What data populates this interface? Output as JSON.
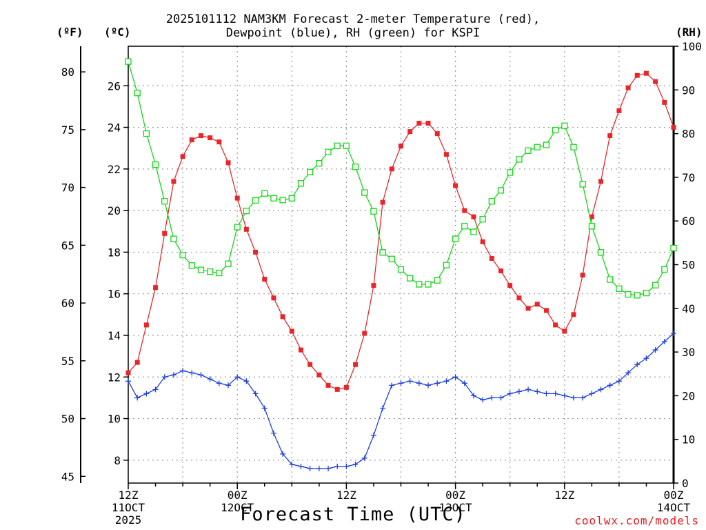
{
  "chart_data": {
    "type": "line",
    "title_line1": "2025101112 NAM3KM Forecast 2-meter Temperature (red),",
    "title_line2": "Dewpoint (blue), RH (green) for KSPI",
    "xlabel": "Forecast Time (UTC)",
    "unit_f": "(ºF)",
    "unit_c": "(ºC)",
    "unit_rh": "(RH)",
    "credit": "coolwx.com/models",
    "x_range_hours": [
      0,
      60
    ],
    "x_ticks": [
      {
        "hour": 0,
        "lines": [
          "12Z",
          "11OCT",
          "2025"
        ]
      },
      {
        "hour": 12,
        "lines": [
          "00Z",
          "12OCT"
        ]
      },
      {
        "hour": 24,
        "lines": [
          "12Z"
        ]
      },
      {
        "hour": 36,
        "lines": [
          "00Z",
          "13OCT"
        ]
      },
      {
        "hour": 48,
        "lines": [
          "12Z"
        ]
      },
      {
        "hour": 60,
        "lines": [
          "00Z",
          "14OCT"
        ]
      }
    ],
    "y_celsius_range": [
      6.9,
      27.9
    ],
    "y_celsius_ticks": [
      8,
      10,
      12,
      14,
      16,
      18,
      20,
      22,
      24,
      26
    ],
    "y_fahrenheit_ticks": [
      45,
      50,
      55,
      60,
      65,
      70,
      75,
      80
    ],
    "y_rh_range": [
      0,
      100
    ],
    "y_rh_ticks": [
      0,
      10,
      20,
      30,
      40,
      50,
      60,
      70,
      80,
      90,
      100
    ],
    "series": [
      {
        "name": "Temperature",
        "units": "C",
        "color": "#e8262a",
        "marker": "filled-square",
        "values": [
          12.2,
          12.7,
          14.5,
          16.3,
          18.9,
          21.4,
          22.6,
          23.4,
          23.6,
          23.5,
          23.3,
          22.3,
          20.6,
          19.1,
          18.0,
          16.7,
          15.8,
          14.9,
          14.2,
          13.3,
          12.6,
          12.1,
          11.6,
          11.4,
          11.5,
          12.6,
          14.1,
          16.4,
          20.4,
          22.0,
          23.1,
          23.8,
          24.2,
          24.2,
          23.7,
          22.7,
          21.2,
          20.0,
          19.7,
          18.5,
          17.7,
          17.1,
          16.4,
          15.8,
          15.3,
          15.5,
          15.2,
          14.5,
          14.2,
          15.0,
          16.9,
          19.7,
          21.4,
          23.6,
          24.8,
          25.9,
          26.5,
          26.6,
          26.2,
          25.2,
          24.0
        ]
      },
      {
        "name": "Dewpoint",
        "units": "C",
        "color": "#1b3fe0",
        "marker": "plus",
        "values": [
          11.8,
          11.0,
          11.2,
          11.4,
          12.0,
          12.1,
          12.3,
          12.2,
          12.1,
          11.9,
          11.7,
          11.6,
          12.0,
          11.8,
          11.2,
          10.5,
          9.3,
          8.3,
          7.8,
          7.7,
          7.6,
          7.6,
          7.6,
          7.7,
          7.7,
          7.8,
          8.1,
          9.2,
          10.5,
          11.6,
          11.7,
          11.8,
          11.7,
          11.6,
          11.7,
          11.8,
          12.0,
          11.7,
          11.1,
          10.9,
          11.0,
          11.0,
          11.2,
          11.3,
          11.4,
          11.3,
          11.2,
          11.2,
          11.1,
          11.0,
          11.0,
          11.2,
          11.4,
          11.6,
          11.8,
          12.2,
          12.6,
          12.9,
          13.3,
          13.7,
          14.1
        ]
      },
      {
        "name": "RH",
        "units": "%",
        "color": "#12d812",
        "marker": "open-square",
        "values": [
          96.5,
          89.3,
          80.0,
          72.9,
          64.5,
          55.9,
          52.2,
          49.8,
          48.8,
          48.4,
          48.1,
          50.2,
          58.6,
          62.3,
          64.7,
          66.3,
          65.2,
          64.8,
          65.2,
          68.6,
          71.2,
          73.2,
          75.8,
          77.2,
          77.2,
          72.4,
          66.5,
          62.2,
          52.8,
          51.3,
          48.9,
          46.9,
          45.5,
          45.5,
          46.4,
          49.9,
          55.9,
          58.8,
          57.5,
          60.4,
          64.5,
          67.0,
          71.1,
          74.1,
          76.1,
          76.9,
          77.4,
          80.8,
          81.8,
          76.9,
          68.4,
          58.8,
          52.8,
          46.6,
          44.5,
          43.2,
          43.0,
          43.5,
          45.3,
          48.9,
          53.8
        ]
      }
    ]
  }
}
